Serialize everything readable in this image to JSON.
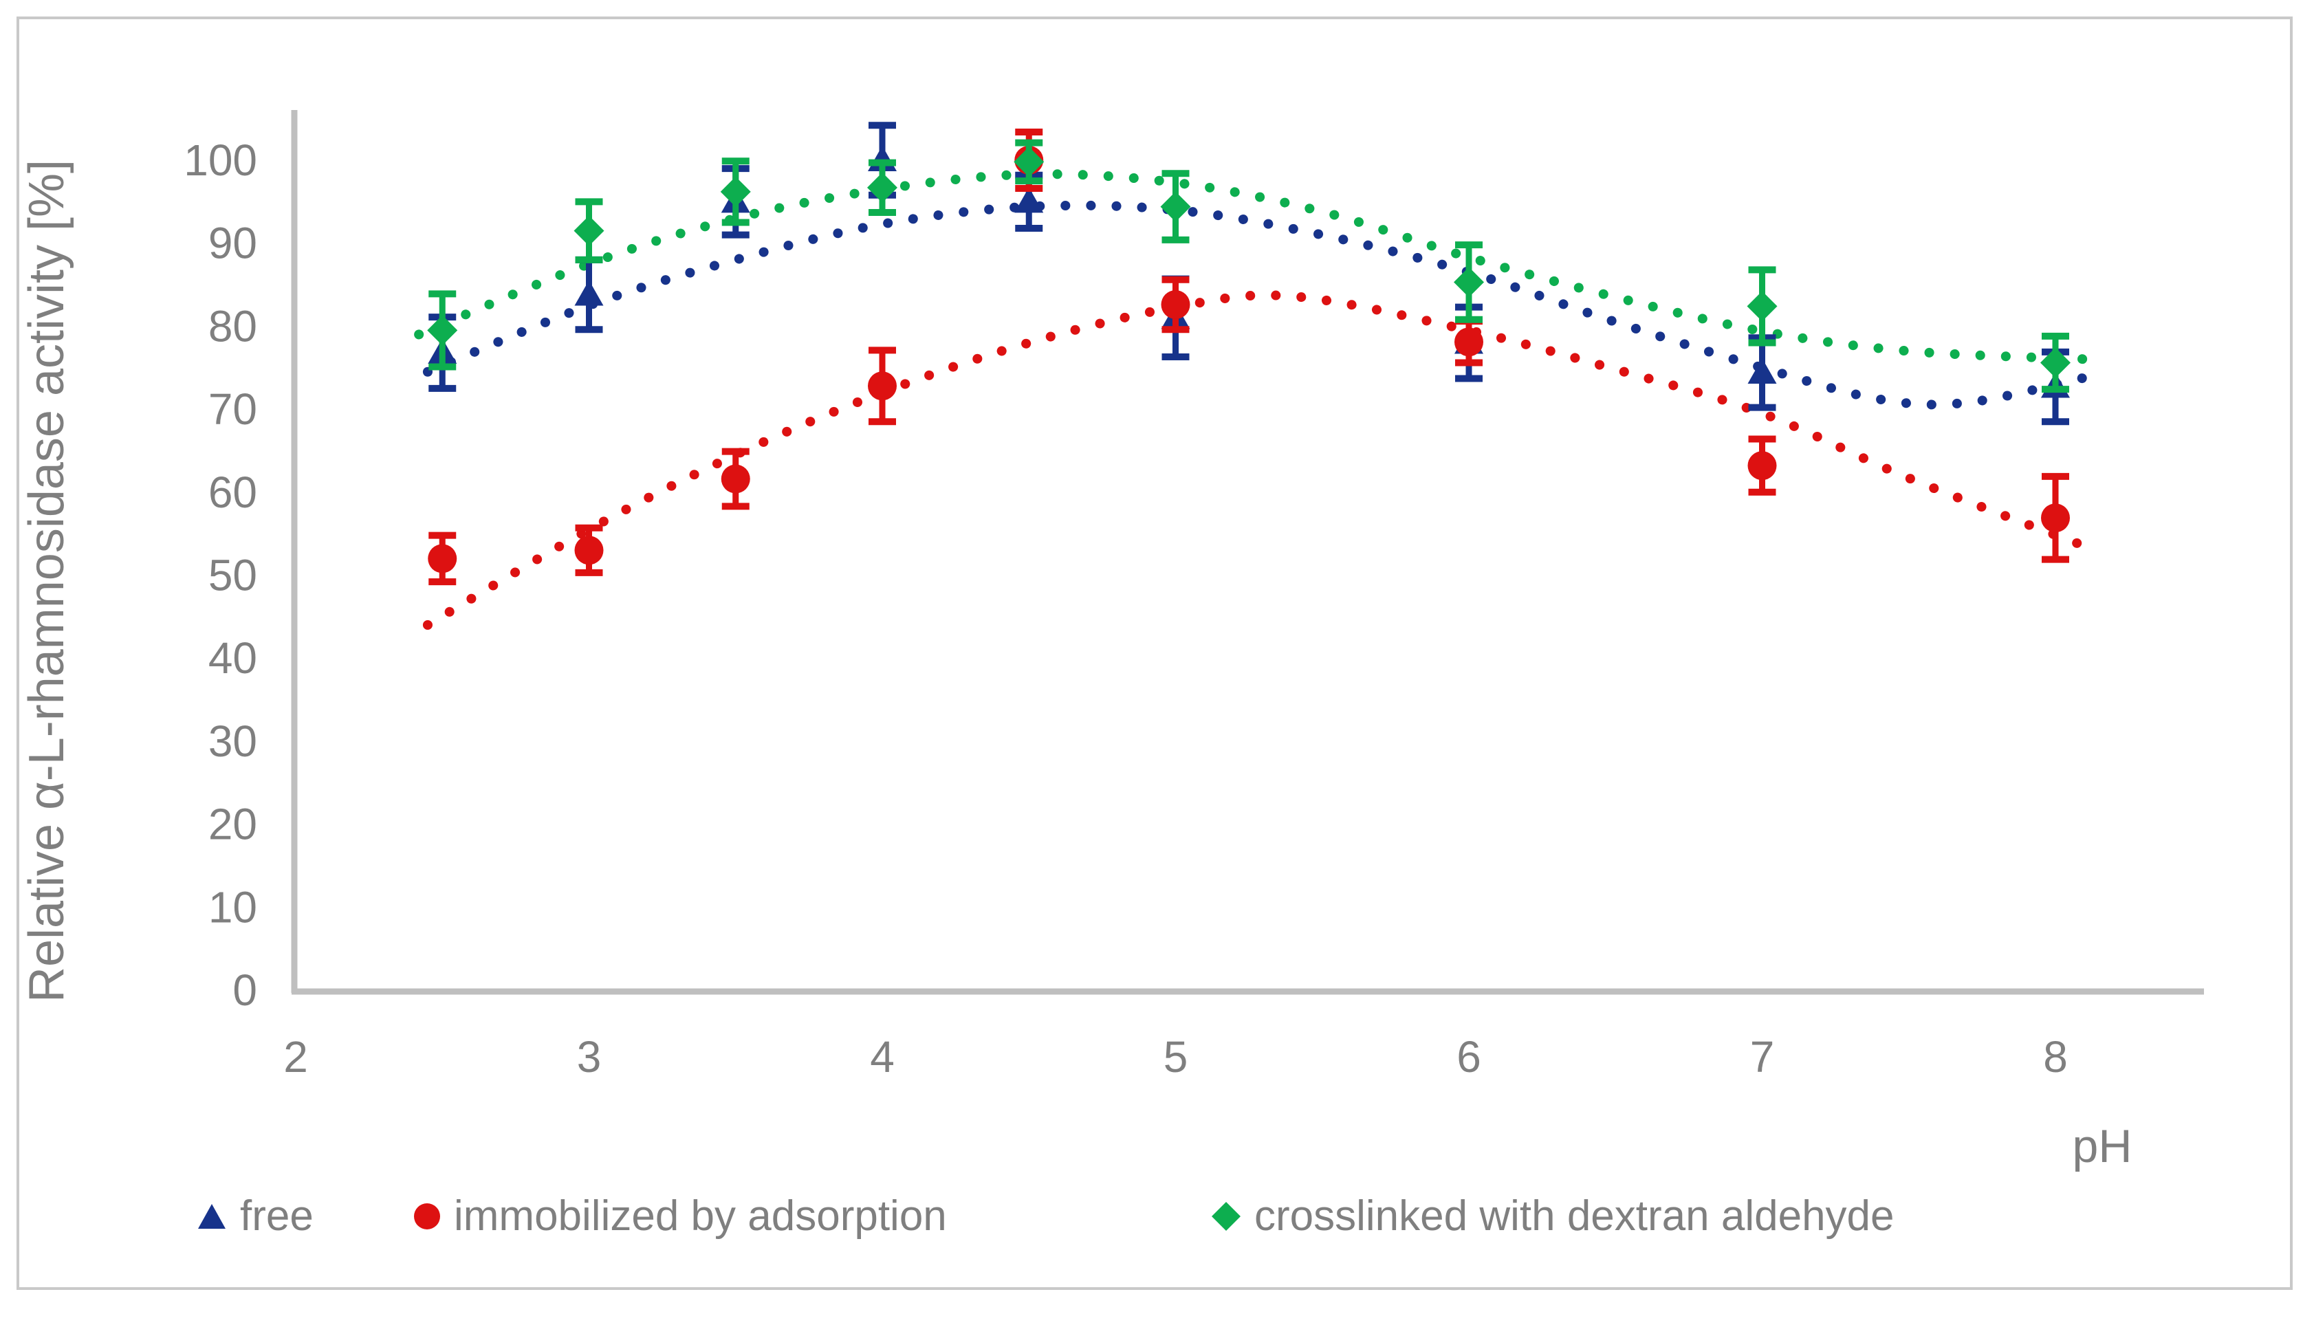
{
  "figure": {
    "background": "#FFFFFF",
    "border_color": "#C9C9C9"
  },
  "chart_data": {
    "type": "scatter",
    "title": "",
    "xlabel": "pH",
    "ylabel": "Relative α-L-rhamnosidase activity [%]",
    "legend_position": "bottom",
    "grid": "off",
    "axis_color": "#BFBFBF",
    "label_color": "#7F7F7F",
    "x_axis": {
      "min": 2,
      "max": 8,
      "ticks": [
        2,
        3,
        4,
        5,
        6,
        7,
        8
      ]
    },
    "y_axis": {
      "min": 0,
      "max": 100,
      "ticks": [
        0,
        10,
        20,
        30,
        40,
        50,
        60,
        70,
        80,
        90,
        100
      ]
    },
    "series": [
      {
        "name": "free",
        "color": "#17338B",
        "marker": "triangle",
        "x": [
          2.5,
          3.0,
          3.5,
          4.0,
          4.5,
          5.0,
          6.0,
          7.0,
          8.0
        ],
        "y": [
          76.8,
          83.8,
          95.0,
          100.0,
          95.0,
          81.0,
          78.0,
          74.4,
          72.7
        ],
        "err": [
          4.3,
          4.2,
          4.0,
          4.2,
          3.2,
          4.7,
          4.3,
          4.2,
          4.2
        ],
        "trend": [
          [
            2.45,
            74.5
          ],
          [
            3,
            82.5
          ],
          [
            3.5,
            88.0
          ],
          [
            4,
            92.3
          ],
          [
            4.5,
            94.4
          ],
          [
            5,
            94.0
          ],
          [
            5.5,
            91.0
          ],
          [
            6,
            86.5
          ],
          [
            6.5,
            80.5
          ],
          [
            7,
            75.0
          ],
          [
            7.4,
            71.2
          ],
          [
            7.7,
            70.8
          ],
          [
            8.1,
            73.8
          ]
        ]
      },
      {
        "name": "immobilized by adsorption",
        "color": "#DD1111",
        "marker": "circle",
        "x": [
          2.5,
          3.0,
          3.5,
          4.0,
          4.5,
          5.0,
          6.0,
          7.0,
          8.0
        ],
        "y": [
          52.0,
          53.0,
          61.6,
          72.8,
          100.0,
          82.6,
          78.1,
          63.2,
          56.9
        ],
        "err": [
          2.8,
          2.7,
          3.3,
          4.3,
          3.4,
          3.0,
          2.5,
          3.2,
          5.0
        ],
        "trend": [
          [
            2.45,
            44.0
          ],
          [
            3,
            55.5
          ],
          [
            3.5,
            64.5
          ],
          [
            4,
            72.0
          ],
          [
            4.5,
            78.0
          ],
          [
            5,
            82.3
          ],
          [
            5.4,
            83.6
          ],
          [
            6,
            79.5
          ],
          [
            6.5,
            74.8
          ],
          [
            7,
            69.5
          ],
          [
            7.5,
            61.7
          ],
          [
            8.1,
            53.5
          ]
        ]
      },
      {
        "name": "crosslinked with dextran aldehyde",
        "color": "#0DAE4F",
        "marker": "diamond",
        "x": [
          2.5,
          3.0,
          3.5,
          4.0,
          4.5,
          5.0,
          6.0,
          7.0,
          8.0
        ],
        "y": [
          79.5,
          91.5,
          96.2,
          96.7,
          99.8,
          94.4,
          85.3,
          82.4,
          75.6
        ],
        "err": [
          4.4,
          3.5,
          3.7,
          3.0,
          2.3,
          4.0,
          4.5,
          4.4,
          3.2
        ],
        "trend": [
          [
            2.42,
            79.0
          ],
          [
            3,
            87.5
          ],
          [
            3.5,
            93.0
          ],
          [
            4,
            96.5
          ],
          [
            4.5,
            98.3
          ],
          [
            5,
            97.3
          ],
          [
            5.5,
            93.8
          ],
          [
            6,
            88.3
          ],
          [
            6.5,
            83.5
          ],
          [
            7,
            79.4
          ],
          [
            7.5,
            77.0
          ],
          [
            8.12,
            76.0
          ]
        ]
      }
    ]
  }
}
